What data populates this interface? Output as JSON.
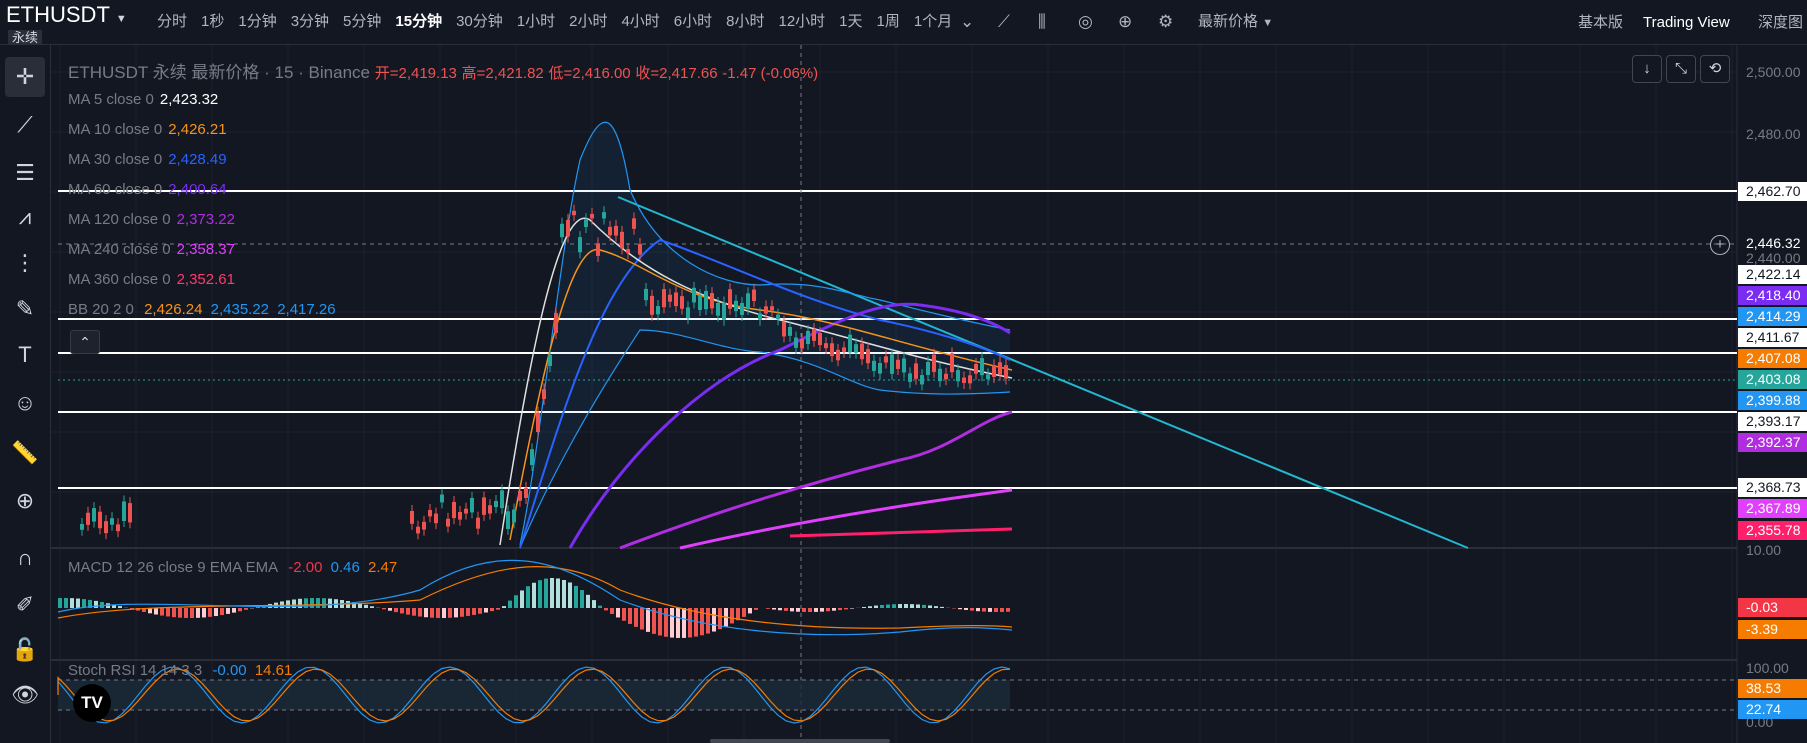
{
  "toolbar": {
    "symbol": "ETHUSDT",
    "contract_type": "永续",
    "timeframes": [
      "分时",
      "1秒",
      "1分钟",
      "3分钟",
      "5分钟",
      "15分钟",
      "30分钟",
      "1小时",
      "2小时",
      "4小时",
      "6小时",
      "8小时",
      "12小时",
      "1天",
      "1周",
      "1个月"
    ],
    "active_timeframe": "15分钟",
    "latest_price_label": "最新价格",
    "basic_view": "基本版",
    "trading_view": "Trading View",
    "depth_view": "深度图"
  },
  "header": {
    "title": "ETHUSDT 永续 最新价格 · 15 · Binance",
    "open_label": "开=",
    "open": "2,419.13",
    "high_label": "高=",
    "high": "2,421.82",
    "low_label": "低=",
    "low": "2,416.00",
    "close_label": "收=",
    "close": "2,417.66",
    "change": "-1.47 (-0.06%)"
  },
  "legend": [
    {
      "label": "MA 5 close 0",
      "value": "2,423.32",
      "color": "#ffffff"
    },
    {
      "label": "MA 10 close 0",
      "value": "2,426.21",
      "color": "#f7931a"
    },
    {
      "label": "MA 30 close 0",
      "value": "2,428.49",
      "color": "#2962ff"
    },
    {
      "label": "MA 60 close 0",
      "value": "2,400.64",
      "color": "#7b2cf2"
    },
    {
      "label": "MA 120 close 0",
      "value": "2,373.22",
      "color": "#b02ee0"
    },
    {
      "label": "MA 240 close 0",
      "value": "2,358.37",
      "color": "#e040fb"
    },
    {
      "label": "MA 360 close 0",
      "value": "2,352.61",
      "color": "#ff3b6b"
    }
  ],
  "bb": {
    "label": "BB 20 2 0",
    "basis": "2,426.24",
    "upper": "2,435.22",
    "lower": "2,417.26"
  },
  "macd": {
    "label": "MACD 12 26 close 9 EMA EMA",
    "hist": "-2.00",
    "macd": "0.46",
    "signal": "2.47"
  },
  "stoch": {
    "label": "Stoch RSI 14 14 3 3",
    "k": "-0.00",
    "d": "14.61"
  },
  "price_axis": [
    "2,500.00",
    "2,480.00",
    "2,440.00"
  ],
  "price_labels": [
    {
      "text": "2,462.70",
      "bg": "#ffffff",
      "fg": "#131722"
    },
    {
      "text": "2,446.32",
      "bg": "#131722",
      "fg": "#ffffff"
    },
    {
      "text": "2,422.14",
      "bg": "#ffffff",
      "fg": "#131722"
    },
    {
      "text": "2,418.40",
      "bg": "#7b2cf2",
      "fg": "#ffffff"
    },
    {
      "text": "2,414.29",
      "bg": "#2196f3",
      "fg": "#ffffff"
    },
    {
      "text": "2,411.67",
      "bg": "#ffffff",
      "fg": "#131722"
    },
    {
      "text": "2,407.08",
      "bg": "#f57c00",
      "fg": "#ffffff"
    },
    {
      "text": "2,403.08",
      "bg": "#26a69a",
      "fg": "#ffffff"
    },
    {
      "text": "2,399.88",
      "bg": "#2196f3",
      "fg": "#ffffff"
    },
    {
      "text": "2,393.17",
      "bg": "#ffffff",
      "fg": "#131722"
    },
    {
      "text": "2,392.37",
      "bg": "#b02ee0",
      "fg": "#ffffff"
    },
    {
      "text": "2,368.73",
      "bg": "#ffffff",
      "fg": "#131722"
    },
    {
      "text": "2,367.89",
      "bg": "#e040fb",
      "fg": "#ffffff"
    },
    {
      "text": "2,355.78",
      "bg": "#ff1f6b",
      "fg": "#ffffff"
    }
  ],
  "macd_axis": [
    "10.00"
  ],
  "macd_labels": [
    {
      "text": "-0.03",
      "bg": "#f23645",
      "fg": "#ffffff"
    },
    {
      "text": "-3.39",
      "bg": "#f57c00",
      "fg": "#ffffff"
    }
  ],
  "stoch_axis": [
    "100.00",
    "0.00"
  ],
  "stoch_labels": [
    {
      "text": "38.53",
      "bg": "#f57c00",
      "fg": "#ffffff"
    },
    {
      "text": "22.74",
      "bg": "#2196f3",
      "fg": "#ffffff"
    }
  ],
  "icons": [
    "crosshair-icon",
    "trendline-icon",
    "fib-icon",
    "pattern-icon",
    "measure-lines-icon",
    "brush-icon",
    "text-icon",
    "emoji-icon",
    "ruler-icon",
    "zoom-icon",
    "magnet-icon",
    "lock-drawing-icon",
    "lock-icon",
    "eye-icon"
  ],
  "logo": "TV"
}
